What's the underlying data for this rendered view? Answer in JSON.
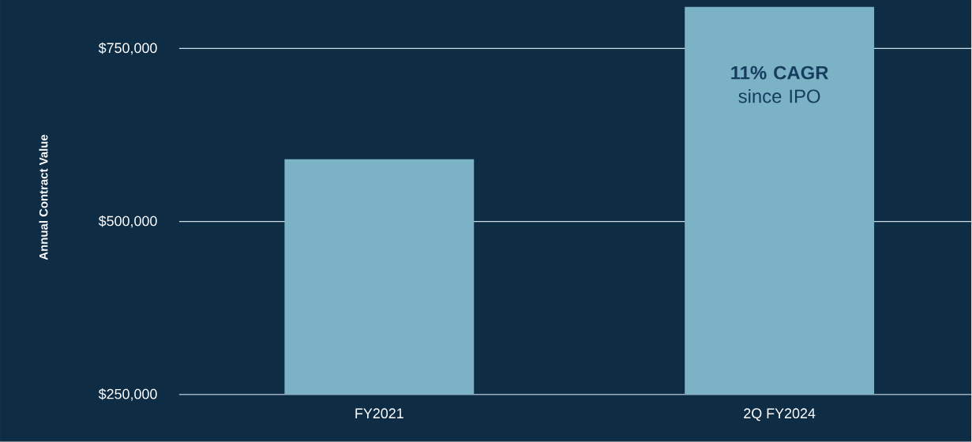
{
  "chart_data": {
    "type": "bar",
    "ylabel": "Annual Contract Value",
    "categories": [
      "FY2021",
      "2Q FY2024"
    ],
    "values": [
      590000,
      810000
    ],
    "color": "#7cb2c5",
    "ylim": [
      250000,
      820000
    ],
    "yticks": [
      {
        "value": 250000,
        "label": "$250,000"
      },
      {
        "value": 500000,
        "label": "$500,000"
      },
      {
        "value": 750000,
        "label": "$750,000"
      }
    ],
    "grid": "y",
    "annotations": [
      "**11% CAGR** since IPO"
    ]
  }
}
